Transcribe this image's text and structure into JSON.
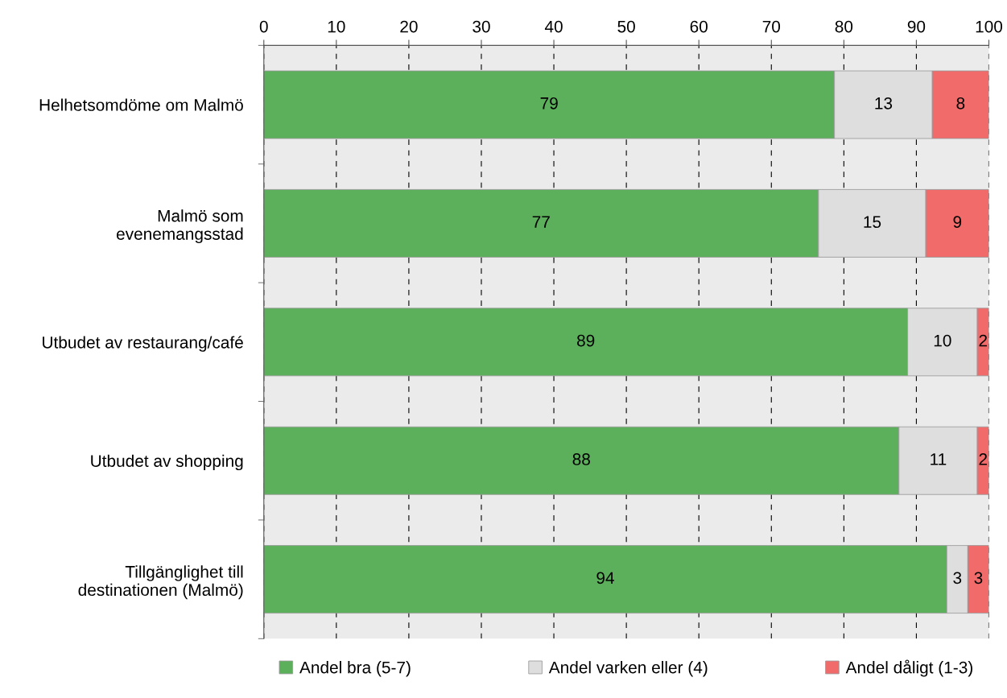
{
  "chart_data": {
    "type": "bar",
    "orientation": "horizontal",
    "stacked": true,
    "categories": [
      "Helhetsomdöme om Malmö",
      "Malmö som\nevenemangsstad",
      "Utbudet av restaurang/café",
      "Utbudet av shopping",
      "Tillgänglighet till\ndestinationen (Malmö)"
    ],
    "series": [
      {
        "name": "Andel bra (5-7)",
        "color": "#5cb05c",
        "values": [
          78.7,
          76.5,
          88.8,
          87.6,
          94.2
        ],
        "value_labels": [
          "79",
          "77",
          "89",
          "88",
          "94"
        ]
      },
      {
        "name": "Andel varken eller (4)",
        "color": "#dedede",
        "values": [
          13.5,
          14.8,
          9.6,
          10.8,
          2.9
        ],
        "value_labels": [
          "13",
          "15",
          "10",
          "11",
          "3"
        ]
      },
      {
        "name": "Andel dåligt (1-3)",
        "color": "#f26b6b",
        "values": [
          7.8,
          8.7,
          1.6,
          1.6,
          2.9
        ],
        "value_labels": [
          "8",
          "9",
          "2",
          "2",
          "3"
        ]
      }
    ],
    "xlim": [
      0,
      100
    ],
    "xticks": [
      0,
      10,
      20,
      30,
      40,
      50,
      60,
      70,
      80,
      90,
      100
    ],
    "grid": "x",
    "legend": "bottom"
  }
}
